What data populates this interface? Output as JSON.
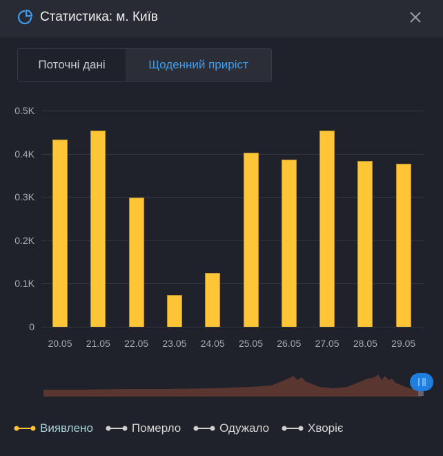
{
  "header": {
    "title": "Статистика: м. Київ",
    "icon": "pie-chart-icon",
    "close_icon": "close-icon"
  },
  "tabs": [
    {
      "label": "Поточні дані",
      "active": false
    },
    {
      "label": "Щоденний приріст",
      "active": true
    }
  ],
  "colors": {
    "accent": "#3c9ff0",
    "bar": "#fec537",
    "navigator": "#5a3630",
    "handle": "#1f7fe0",
    "background": "#20222b"
  },
  "chart_data": {
    "type": "bar",
    "title": "Статистика: м. Київ — Щоденний приріст",
    "categories": [
      "20.05",
      "21.05",
      "22.05",
      "23.05",
      "24.05",
      "25.05",
      "26.05",
      "27.05",
      "28.05",
      "29.05"
    ],
    "series": [
      {
        "name": "Виявлено",
        "values": [
          433,
          453,
          299,
          74,
          125,
          403,
          386,
          454,
          384,
          377
        ]
      }
    ],
    "yticks": [
      "0",
      "0.1K",
      "0.2K",
      "0.3K",
      "0.4K",
      "0.5K"
    ],
    "ylim": [
      0,
      500
    ],
    "xlabel": "",
    "ylabel": "",
    "grid": true,
    "legend_position": "bottom"
  },
  "legend": [
    {
      "label": "Виявлено",
      "color": "#fec537",
      "text_color": "#a9d2d6"
    },
    {
      "label": "Померло",
      "color": "#cfcfcf",
      "text_color": "#d6d6d6"
    },
    {
      "label": "Одужало",
      "color": "#cfcfcf",
      "text_color": "#d6d6d6"
    },
    {
      "label": "Хворіє",
      "color": "#cfcfcf",
      "text_color": "#d6d6d6"
    }
  ]
}
